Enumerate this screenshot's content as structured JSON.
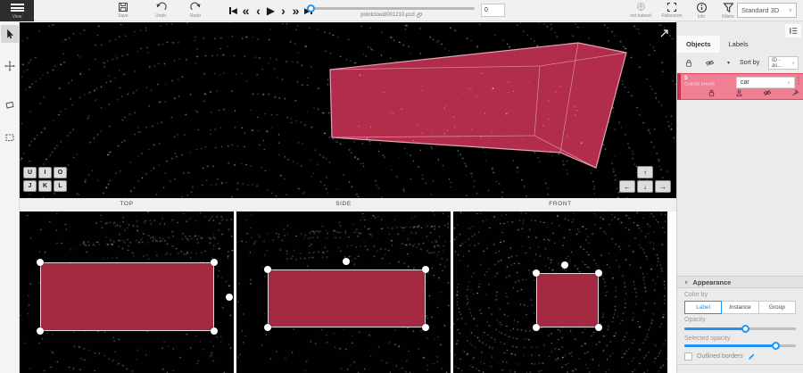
{
  "colors": {
    "accent_blue": "#2094f3",
    "cuboid_fill": "#b22c4b",
    "cuboid_edge": "#e2a2b3",
    "bbox_fill": "#a42a42",
    "object_row_bg": "#ef8094",
    "toolbar_bg": "#f1f1f1",
    "panel_bg": "#ebebeb"
  },
  "toolbar": {
    "menu_label": "View",
    "save_label": "Save",
    "undo_label": "Undo",
    "redo_label": "Redo",
    "filename": "pointcloud/001210.pcd",
    "frame_value": "0",
    "not_trained_label": "not trained",
    "fullscreen_label": "Fullscreen",
    "info_label": "Info",
    "filters_label": "Filters",
    "view_mode_value": "Standard 3D"
  },
  "icons": {
    "chevron_down": "∨",
    "caret_down": "▾",
    "kebab": "⋮",
    "rewind": "«",
    "step_back": "‹",
    "play": "▶",
    "step_forward": "›",
    "fast_forward": "»",
    "skip_back_triangle": "◀",
    "skip_forward_triangle": "▶"
  },
  "left_toolbar": {
    "tools": [
      {
        "name": "select"
      },
      {
        "name": "move"
      },
      {
        "name": "cuboid"
      },
      {
        "name": "marquee"
      }
    ]
  },
  "main_view": {
    "key_hints": [
      "U",
      "I",
      "O",
      "J",
      "K",
      "L"
    ],
    "nav_arrows": [
      "↑",
      "←",
      "↓",
      "→"
    ]
  },
  "views": [
    {
      "label": "TOP"
    },
    {
      "label": "SIDE"
    },
    {
      "label": "FRONT"
    }
  ],
  "right_panel": {
    "tabs": [
      {
        "label": "Objects",
        "active": true
      },
      {
        "label": "Labels",
        "active": false
      }
    ],
    "sort_by_label": "Sort by",
    "sort_value": "ID - as...",
    "object": {
      "id": "5",
      "type": "CUBOID SHAPE",
      "class_value": "car"
    },
    "appearance": {
      "title": "Appearance",
      "color_by_label": "Color by",
      "color_by_options": [
        "Label",
        "Instance",
        "Group"
      ],
      "color_by_selected": "Label",
      "opacity_label": "Opacity",
      "opacity_value": 55,
      "selected_opacity_label": "Selected opacity",
      "selected_opacity_value": 82,
      "outlined_borders_label": "Outlined borders",
      "outlined_borders_checked": false
    }
  }
}
